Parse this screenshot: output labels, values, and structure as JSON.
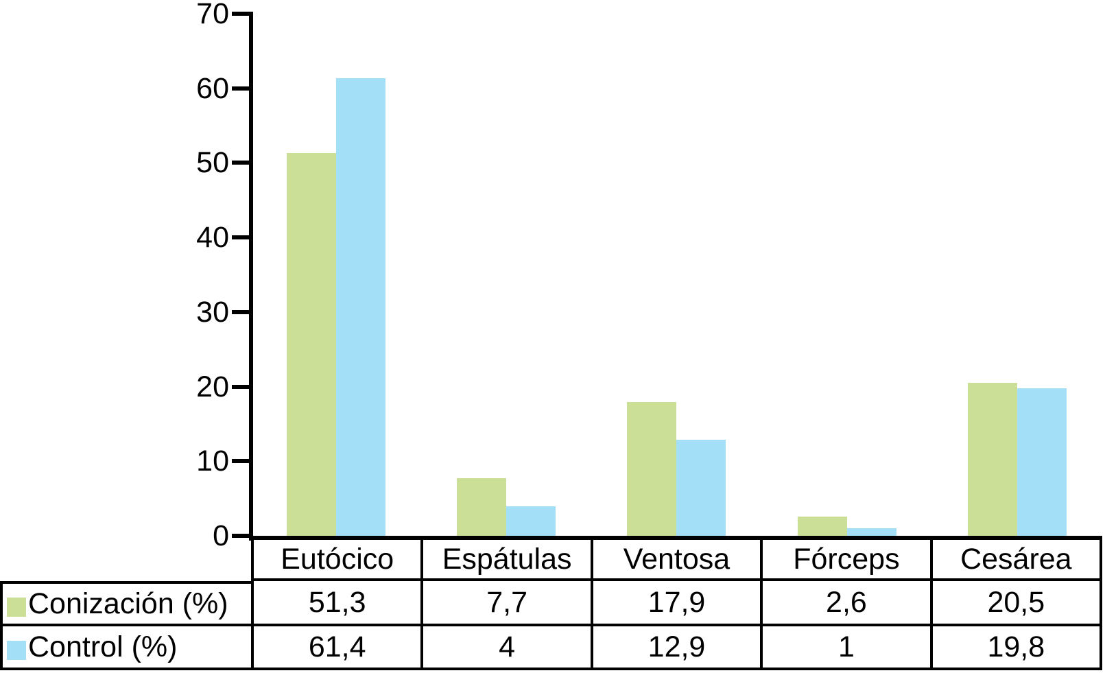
{
  "chart_data": {
    "type": "bar",
    "title": "",
    "xlabel": "",
    "ylabel": "",
    "categories": [
      "Eutócico",
      "Espátulas",
      "Ventosa",
      "Fórceps",
      "Cesárea"
    ],
    "series": [
      {
        "name": "Conización (%)",
        "color": "#cbdf96",
        "values": [
          51.3,
          7.7,
          17.9,
          2.6,
          20.5
        ],
        "display_values": [
          "51,3",
          "7,7",
          "17,9",
          "2,6",
          "20,5"
        ]
      },
      {
        "name": "Control (%)",
        "color": "#a3dff7",
        "values": [
          61.4,
          4,
          12.9,
          1,
          19.8
        ],
        "display_values": [
          "61,4",
          "4",
          "12,9",
          "1",
          "19,8"
        ]
      }
    ],
    "ylim": [
      0,
      70
    ],
    "yticks": [
      0,
      10,
      20,
      30,
      40,
      50,
      60,
      70
    ],
    "ytick_labels": [
      "0",
      "10",
      "20",
      "30",
      "40",
      "50",
      "60",
      "70"
    ],
    "grid": false,
    "legend_position": "data-table-left",
    "colors": {
      "axis": "#000000",
      "text": "#000000",
      "background": "#ffffff"
    }
  }
}
